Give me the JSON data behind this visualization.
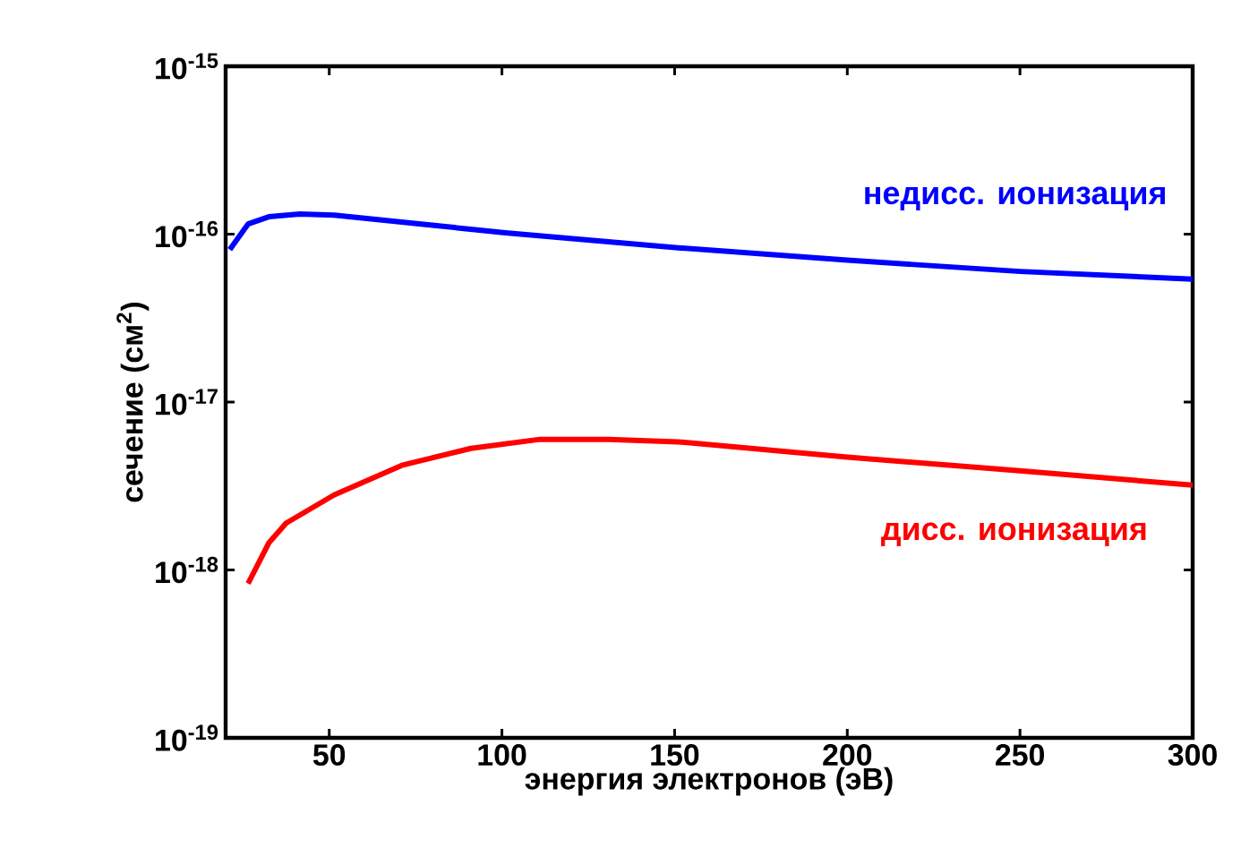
{
  "chart_data": {
    "type": "line",
    "xlabel": "энергия электронов (эВ)",
    "ylabel": "сечение (см$^{2}$)",
    "log": "y",
    "xlim": [
      20,
      300
    ],
    "xticks": [
      50,
      100,
      150,
      200,
      250,
      300
    ],
    "ylim": [
      1e-19,
      1e-15
    ],
    "yticks": [
      {
        "value": 1e-19,
        "label": "10$^{-19}$"
      },
      {
        "value": 1e-18,
        "label": "10$^{-18}$"
      },
      {
        "value": 1e-17,
        "label": "10$^{-17}$"
      },
      {
        "value": 1e-16,
        "label": "10$^{-16}$"
      },
      {
        "value": 1e-15,
        "label": "10$^{-15}$"
      }
    ],
    "grid": false,
    "legend": false,
    "marker": "none",
    "line_style": "solid",
    "series": [
      {
        "name": "недисс. ионизация",
        "color": "#0000ff",
        "x": [
          21.2,
          26.5,
          32.5,
          41.5,
          51.4,
          71,
          101,
          151,
          200,
          250,
          300
        ],
        "values": [
          8.1e-17,
          1.15e-16,
          1.27e-16,
          1.32e-16,
          1.3e-16,
          1.18e-16,
          1.02e-16,
          8.3e-17,
          7e-17,
          6e-17,
          5.4e-17
        ]
      },
      {
        "name": "дисс. ионизация",
        "color": "#ff0000",
        "x": [
          26.5,
          32.5,
          37.5,
          51.4,
          71,
          91,
          111,
          131,
          151,
          200,
          250,
          300
        ],
        "values": [
          8.3e-19,
          1.45e-18,
          1.9e-18,
          2.8e-18,
          4.2e-18,
          5.3e-18,
          6e-18,
          6e-18,
          5.8e-18,
          4.7e-18,
          3.9e-18,
          3.2e-18
        ]
      }
    ]
  }
}
